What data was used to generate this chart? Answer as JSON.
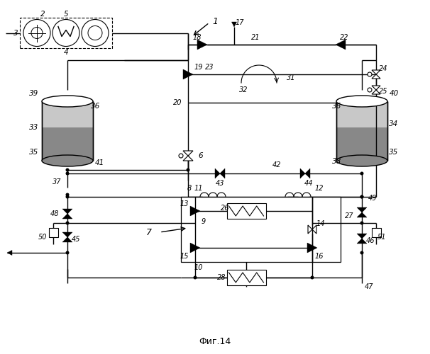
{
  "title": "Фиг.14",
  "bg_color": "#ffffff",
  "line_color": "#000000",
  "fill_light": "#c8c8c8",
  "fill_dark": "#888888",
  "font_size_label": 7.5,
  "font_size_title": 9
}
